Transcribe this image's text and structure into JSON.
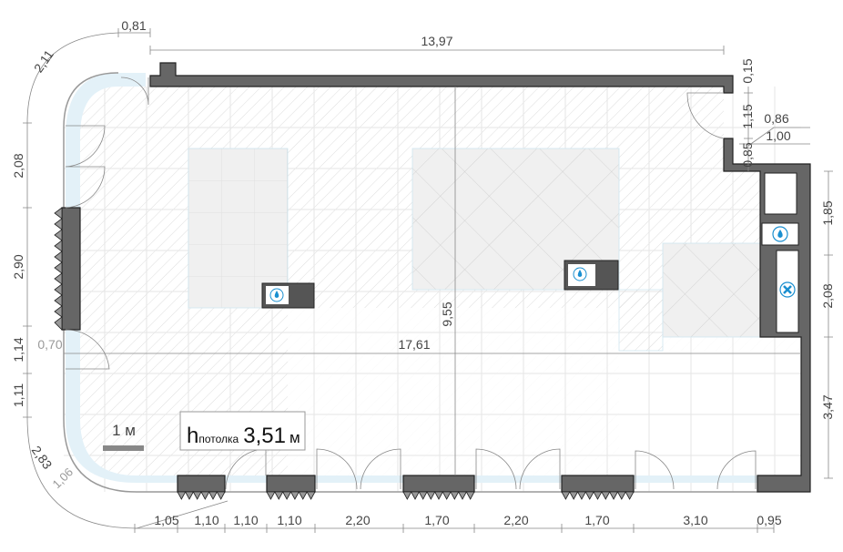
{
  "plan": {
    "ceiling_height_label": "h",
    "ceiling_height_sub": "потолка",
    "ceiling_height_value": "3,51",
    "ceiling_height_unit": "м",
    "scale_label": "1 м",
    "colors": {
      "wall": "#666666",
      "glazing": "#e3f1f8",
      "zone": "#f0f0f0",
      "icon": "#1a8fd0"
    },
    "icons": [
      "water-drop-icon",
      "ventilation-fan-icon"
    ],
    "dimensions": {
      "top_length": "13,97",
      "total_length": "17,61",
      "total_depth": "9,55",
      "corner_top": "0,81",
      "corner_arc": "2,11",
      "left_1": "2,08",
      "left_2": "2,90",
      "left_3": "1,14",
      "left_4": "1,11",
      "left_door": "0,70",
      "corner_bottom_outer": "2,83",
      "corner_bottom_inner": "1,06",
      "right_top_1": "0,15",
      "right_top_2": "1,15",
      "right_top_3": "0,85",
      "right_step_1": "0,86",
      "right_step_2": "1,00",
      "right_1": "1,85",
      "right_2": "2,08",
      "right_3": "3,47",
      "bottom": [
        "1,05",
        "1,10",
        "1,10",
        "1,10",
        "2,20",
        "1,70",
        "2,20",
        "1,70",
        "3,10",
        "0,95"
      ]
    }
  }
}
